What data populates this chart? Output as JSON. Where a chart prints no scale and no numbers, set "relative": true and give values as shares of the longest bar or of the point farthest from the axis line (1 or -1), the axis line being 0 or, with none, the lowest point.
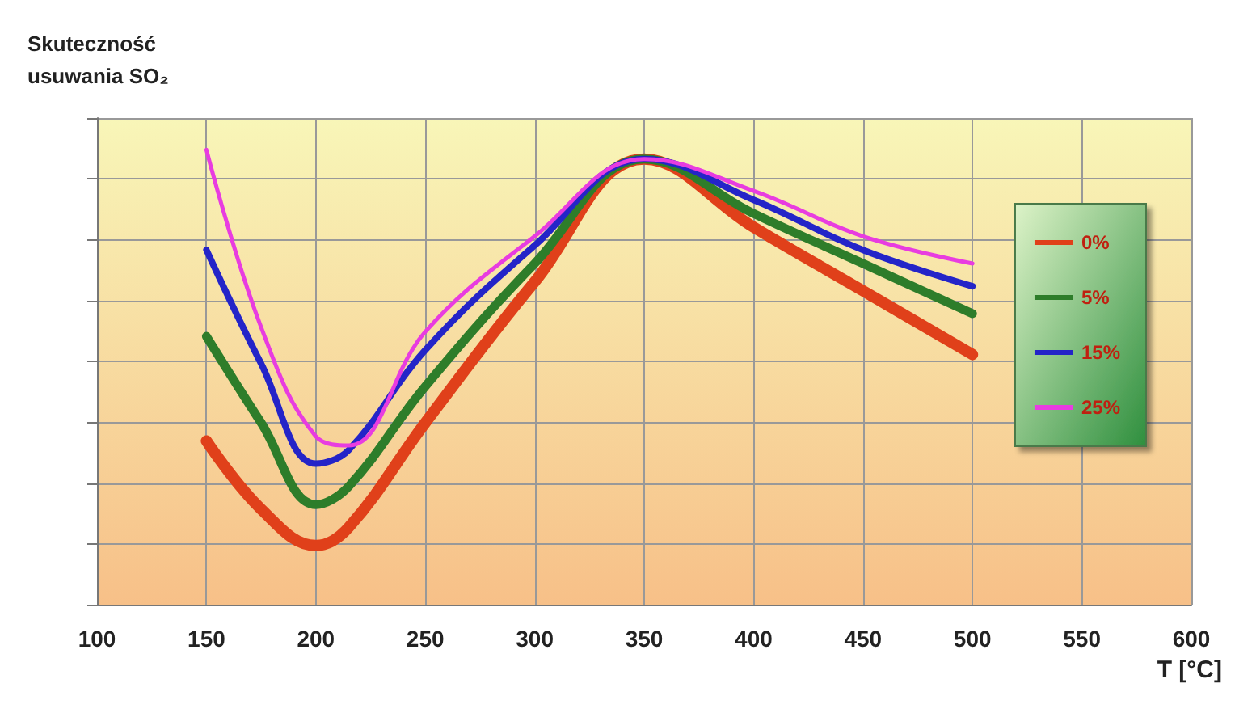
{
  "chart_data": {
    "type": "line",
    "ylabel": "Skuteczność\nusuwania SO₂",
    "xlabel": "T [°C]",
    "relative": true,
    "x": [
      150,
      175,
      200,
      215,
      250,
      300,
      350,
      400,
      450,
      500
    ],
    "xlim": [
      100,
      600
    ],
    "xticks": [
      100,
      150,
      200,
      250,
      300,
      350,
      400,
      450,
      500,
      550,
      600
    ],
    "series": [
      {
        "name": "0%",
        "color": "#e0401a",
        "values": [
          0.36,
          0.21,
          0.13,
          0.17,
          0.4,
          0.71,
          0.98,
          0.83,
          0.69,
          0.55
        ]
      },
      {
        "name": "5%",
        "color": "#2e7d2a",
        "values": [
          0.59,
          0.4,
          0.22,
          0.26,
          0.48,
          0.75,
          0.98,
          0.86,
          0.75,
          0.64
        ]
      },
      {
        "name": "15%",
        "color": "#2424c8",
        "values": [
          0.78,
          0.53,
          0.31,
          0.34,
          0.56,
          0.79,
          0.98,
          0.89,
          0.78,
          0.7
        ]
      },
      {
        "name": "25%",
        "color": "#e83ce0",
        "values": [
          1.0,
          0.61,
          0.37,
          0.35,
          0.6,
          0.81,
          0.98,
          0.91,
          0.81,
          0.75
        ]
      }
    ],
    "grid": true,
    "legend": "right",
    "marker": "none",
    "line_style": "solid"
  }
}
